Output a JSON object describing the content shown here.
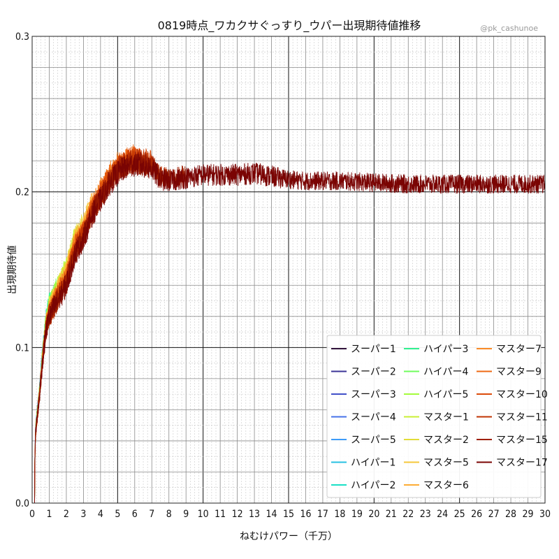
{
  "chart_data": {
    "type": "line",
    "title": "0819時点_ワカクサぐっすり_ウパー出現期待値推移",
    "credit": "@pk_cashunoe",
    "xlabel": "ねむけパワー（千万）",
    "ylabel": "出現期待値",
    "xlim": [
      0,
      30
    ],
    "ylim": [
      0,
      0.3
    ],
    "x_ticks": [
      "0",
      "1",
      "2",
      "3",
      "4",
      "5",
      "6",
      "7",
      "8",
      "9",
      "10",
      "11",
      "12",
      "13",
      "14",
      "15",
      "16",
      "17",
      "18",
      "19",
      "20",
      "21",
      "22",
      "23",
      "24",
      "25",
      "26",
      "27",
      "28",
      "29",
      "30"
    ],
    "y_ticks": [
      "0.0",
      "0.1",
      "0.2",
      "0.3"
    ],
    "grid": true,
    "legend_placement": "lower-right",
    "series": [
      {
        "name": "スーパー1",
        "color": "#30123b",
        "x_end": 0.35
      },
      {
        "name": "スーパー2",
        "color": "#3a3396",
        "x_end": 0.45
      },
      {
        "name": "スーパー3",
        "color": "#4150c8",
        "x_end": 0.55
      },
      {
        "name": "スーパー4",
        "color": "#4672e8",
        "x_end": 0.6
      },
      {
        "name": "スーパー5",
        "color": "#3d9bf8",
        "x_end": 0.7
      },
      {
        "name": "ハイパー1",
        "color": "#27c0e2",
        "x_end": 0.85
      },
      {
        "name": "ハイパー2",
        "color": "#1ae0c6",
        "x_end": 1.0
      },
      {
        "name": "ハイパー3",
        "color": "#2ff08f",
        "x_end": 1.2
      },
      {
        "name": "ハイパー4",
        "color": "#6ffc5c",
        "x_end": 1.5
      },
      {
        "name": "ハイパー5",
        "color": "#a4fc3c",
        "x_end": 2.0
      },
      {
        "name": "マスター1",
        "color": "#c9ef34",
        "x_end": 2.5
      },
      {
        "name": "マスター2",
        "color": "#e2dc38",
        "x_end": 3.0
      },
      {
        "name": "マスター5",
        "color": "#f5c73a",
        "x_end": 3.3
      },
      {
        "name": "マスター6",
        "color": "#fdac34",
        "x_end": 3.6
      },
      {
        "name": "マスター7",
        "color": "#fa8a25",
        "x_end": 5.0
      },
      {
        "name": "マスター9",
        "color": "#ee6913",
        "x_end": 6.0
      },
      {
        "name": "マスター10",
        "color": "#db4b0a",
        "x_end": 7.0
      },
      {
        "name": "マスター11",
        "color": "#c03403",
        "x_end": 8.0
      },
      {
        "name": "マスター15",
        "color": "#9f2002",
        "x_end": 9.0
      },
      {
        "name": "マスター17",
        "color": "#7a0403",
        "x_end": 30.0
      }
    ],
    "trend": {
      "x": [
        0,
        0.1,
        0.2,
        0.4,
        0.6,
        0.8,
        1.0,
        1.5,
        2.0,
        2.5,
        3.0,
        3.5,
        4.0,
        4.5,
        5.0,
        5.5,
        6.0,
        6.5,
        7.0,
        7.5,
        8.0,
        9.0,
        10.0,
        11.0,
        12.0,
        13.0,
        14.0,
        15.0,
        16.0,
        18.0,
        20.0,
        22.0,
        25.0,
        28.0,
        30.0
      ],
      "y": [
        0.0,
        0.0,
        0.045,
        0.065,
        0.09,
        0.11,
        0.12,
        0.13,
        0.14,
        0.16,
        0.17,
        0.185,
        0.195,
        0.205,
        0.212,
        0.216,
        0.218,
        0.217,
        0.215,
        0.208,
        0.207,
        0.209,
        0.211,
        0.211,
        0.211,
        0.212,
        0.21,
        0.208,
        0.207,
        0.207,
        0.206,
        0.205,
        0.205,
        0.205,
        0.205
      ],
      "noise": [
        0,
        0,
        0.004,
        0.005,
        0.006,
        0.007,
        0.008,
        0.008,
        0.008,
        0.008,
        0.008,
        0.008,
        0.008,
        0.008,
        0.008,
        0.008,
        0.008,
        0.008,
        0.008,
        0.007,
        0.007,
        0.007,
        0.007,
        0.007,
        0.007,
        0.007,
        0.007,
        0.006,
        0.006,
        0.006,
        0.006,
        0.006,
        0.006,
        0.006,
        0.006
      ]
    }
  }
}
